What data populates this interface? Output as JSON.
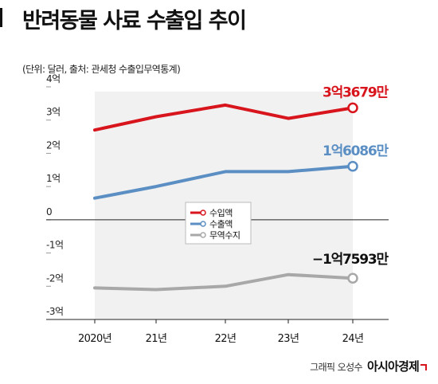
{
  "header": {
    "title": "반려동물 사료 수출입 추이",
    "subtitle": "(단위: 달러, 출처: 관세청 수출입무역통계)"
  },
  "credit": {
    "text": "그래픽 오성수",
    "brand": "아시아경제"
  },
  "chart_data": {
    "type": "line",
    "x": [
      "2020년",
      "21년",
      "22년",
      "23년",
      "24년"
    ],
    "y_unit": "억 달러",
    "ylim": [
      -3,
      4
    ],
    "y_ticks": [
      4,
      3,
      2,
      1,
      0,
      -1,
      -2,
      -3
    ],
    "y_tick_labels": [
      "4억",
      "3억",
      "2억",
      "1억",
      "0",
      "-1억",
      "-2억",
      "-3억"
    ],
    "grid": false,
    "legend_position": "center",
    "shaded_band": "2020년–24년",
    "series": [
      {
        "name": "수입액",
        "color": "#d8141c",
        "values": [
          2.7,
          3.1,
          3.45,
          3.05,
          3.3679
        ],
        "end_label": "3억3679만"
      },
      {
        "name": "수출액",
        "color": "#5b8fc4",
        "values": [
          0.65,
          1.0,
          1.45,
          1.45,
          1.6086
        ],
        "end_label": "1억6086만"
      },
      {
        "name": "무역수지",
        "color": "#a8a8a8",
        "values": [
          -2.05,
          -2.1,
          -2.0,
          -1.65,
          -1.7593
        ],
        "end_label": "−1억7593만"
      }
    ],
    "end_label_colors": [
      "#d8141c",
      "#5b8fc4",
      "#111111"
    ]
  }
}
